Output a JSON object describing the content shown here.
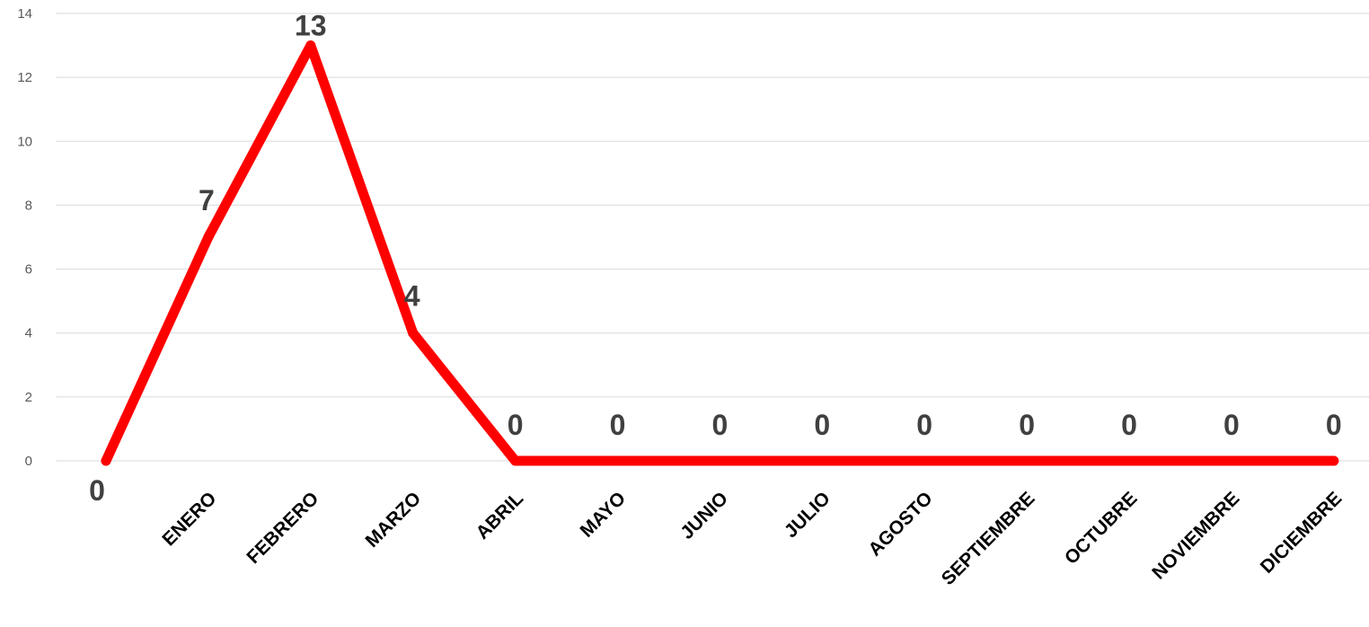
{
  "chart_data": {
    "type": "line",
    "categories": [
      "",
      "ENERO",
      "FEBRERO",
      "MARZO",
      "ABRIL",
      "MAYO",
      "JUNIO",
      "JULIO",
      "AGOSTO",
      "SEPTIEMBRE",
      "OCTUBRE",
      "NOVIEMBRE",
      "DICIEMBRE"
    ],
    "values": [
      0,
      7,
      13,
      4,
      0,
      0,
      0,
      0,
      0,
      0,
      0,
      0,
      0
    ],
    "data_labels": [
      "0",
      "7",
      "13",
      "4",
      "0",
      "0",
      "0",
      "0",
      "0",
      "0",
      "0",
      "0",
      "0"
    ],
    "yticks": [
      "0",
      "2",
      "4",
      "6",
      "8",
      "10",
      "12",
      "14"
    ],
    "ylim": [
      0,
      14
    ],
    "title": "",
    "xlabel": "",
    "ylabel": "",
    "grid": true,
    "legend": "none",
    "colors": {
      "line": "#ff0000",
      "grid": "#d9d9d9",
      "data_label": "#404040",
      "tick": "#595959"
    }
  }
}
